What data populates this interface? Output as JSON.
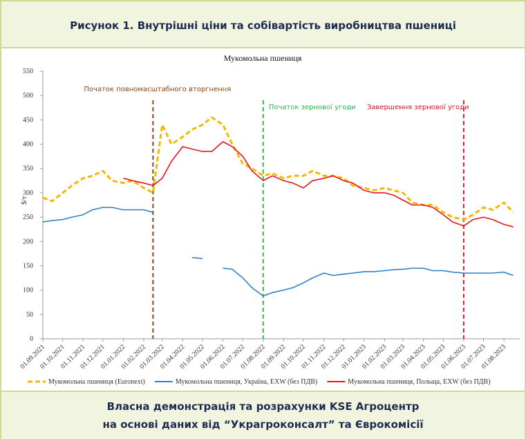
{
  "header": {
    "title": "Рисунок 1. Внутрішні ціни та собівартість виробництва пшениці"
  },
  "footer": {
    "lines": [
      "Власна демонстрація та розрахунки KSE Агроцентр",
      "на основі даних від “Украгроконсалт” та Єврокомісії"
    ]
  },
  "chart_data": {
    "type": "line",
    "title": "Мукомольна пшениця",
    "y_label": "$/т",
    "x": [
      "01.09.2021",
      "15.09.2021",
      "01.10.2021",
      "15.10.2021",
      "01.11.2021",
      "15.11.2021",
      "01.12.2021",
      "15.12.2021",
      "01.01.2022",
      "15.01.2022",
      "01.02.2022",
      "15.02.2022",
      "01.03.2022",
      "15.03.2022",
      "01.04.2022",
      "15.04.2022",
      "01.05.2022",
      "15.05.2022",
      "01.06.2022",
      "15.06.2022",
      "01.07.2022",
      "15.07.2022",
      "01.08.2022",
      "15.08.2022",
      "01.09.2022",
      "15.09.2022",
      "01.10.2022",
      "15.10.2022",
      "01.11.2022",
      "15.11.2022",
      "01.12.2022",
      "15.12.2022",
      "01.01.2023",
      "15.01.2023",
      "01.02.2023",
      "15.02.2023",
      "01.03.2023",
      "15.03.2023",
      "01.04.2023",
      "15.04.2023",
      "01.05.2023",
      "15.05.2023",
      "01.06.2023",
      "15.06.2023",
      "01.07.2023",
      "15.07.2023",
      "01.08.2023",
      "15.08.2023"
    ],
    "series": [
      {
        "name": "Мукомольна пшениця (Euronext)",
        "color": "#f5b800",
        "dash": true,
        "values": [
          290,
          283,
          300,
          315,
          330,
          335,
          345,
          325,
          320,
          325,
          310,
          300,
          440,
          400,
          415,
          430,
          440,
          455,
          440,
          400,
          360,
          350,
          335,
          340,
          330,
          335,
          335,
          345,
          335,
          335,
          330,
          315,
          310,
          305,
          310,
          305,
          300,
          280,
          275,
          275,
          260,
          250,
          245,
          255,
          270,
          265,
          280,
          260
        ]
      },
      {
        "name": "Мукомольна пшениця, Україна, EXW (без ПДВ)",
        "color": "#2f7fc8",
        "dash": false,
        "values": [
          240,
          243,
          245,
          250,
          255,
          265,
          270,
          270,
          265,
          265,
          265,
          260,
          null,
          null,
          null,
          167,
          165,
          null,
          145,
          143,
          125,
          105,
          88,
          95,
          100,
          105,
          115,
          125,
          135,
          130,
          133,
          135,
          138,
          138,
          140,
          142,
          143,
          145,
          145,
          140,
          140,
          137,
          135,
          135,
          135,
          135,
          137,
          130
        ]
      },
      {
        "name": "Мукомольна пшениця, Польща, EXW (без ПДВ)",
        "color": "#e8141c",
        "dash": false,
        "values": [
          null,
          null,
          null,
          null,
          null,
          null,
          null,
          null,
          330,
          325,
          320,
          315,
          330,
          365,
          395,
          390,
          385,
          385,
          405,
          395,
          375,
          345,
          325,
          335,
          325,
          320,
          310,
          325,
          330,
          335,
          325,
          320,
          305,
          300,
          300,
          295,
          285,
          275,
          275,
          270,
          255,
          240,
          232,
          245,
          250,
          245,
          235,
          230
        ]
      }
    ],
    "annotations": [
      {
        "text": "Початок повномасштабного вторгнення",
        "x": "15.02.2022",
        "color": "#8b4513"
      },
      {
        "text": "Початок зернової угоди",
        "x": "01.08.2022",
        "color": "#2db84d"
      },
      {
        "text": "Завершення зернової угоди",
        "x": "01.06.2023",
        "color": "#e8141c"
      }
    ],
    "xlim": [
      "01.09.2021",
      "25.08.2023"
    ],
    "xticks": [
      "01.09.2021",
      "01.10.2021",
      "01.11.2021",
      "01.12.2021",
      "01.01.2022",
      "01.02.2022",
      "01.03.2022",
      "01.04.2022",
      "01.05.2022",
      "01.06.2022",
      "01.07.2022",
      "01.08.2022",
      "01.09.2022",
      "01.10.2022",
      "01.11.2022",
      "01.12.2022",
      "01.01.2023",
      "01.02.2023",
      "01.03.2023",
      "01.04.2023",
      "01.05.2023",
      "01.06.2023",
      "01.07.2023",
      "01.08.2023"
    ],
    "ylim": [
      0,
      550
    ],
    "yticks": [
      0,
      50,
      100,
      150,
      200,
      250,
      300,
      350,
      400,
      450,
      500,
      550
    ],
    "legend": "bottom"
  }
}
